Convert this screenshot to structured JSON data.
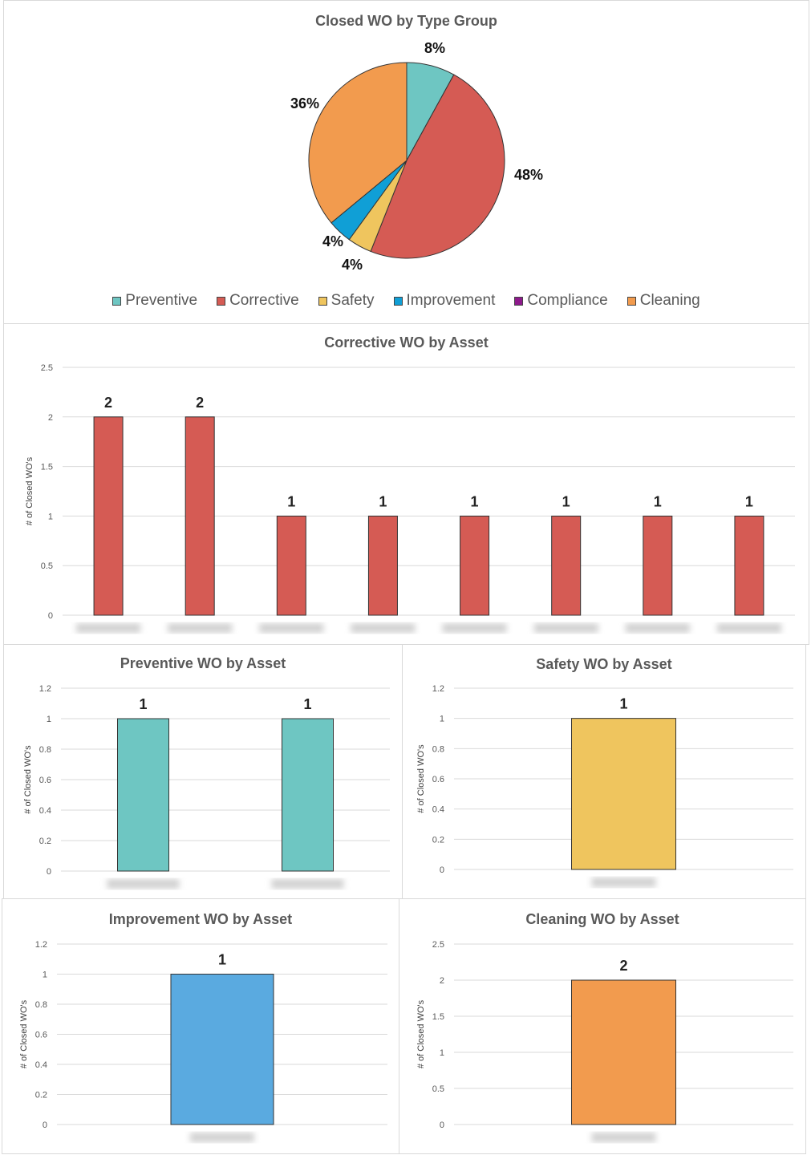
{
  "chart_data": [
    {
      "type": "pie",
      "title": "Closed WO by Type Group",
      "legend_position": "bottom",
      "slices": [
        {
          "name": "Preventive",
          "value": 8,
          "label": "8%",
          "color": "#6EC6C2"
        },
        {
          "name": "Corrective",
          "value": 48,
          "label": "48%",
          "color": "#D55B54"
        },
        {
          "name": "Safety",
          "value": 4,
          "label": "4%",
          "color": "#EFC55E"
        },
        {
          "name": "Improvement",
          "value": 4,
          "label": "4%",
          "color": "#109FD6"
        },
        {
          "name": "Compliance",
          "value": 0,
          "label": "",
          "color": "#8E1A8C"
        },
        {
          "name": "Cleaning",
          "value": 36,
          "label": "36%",
          "color": "#F29B4E"
        }
      ]
    },
    {
      "type": "bar",
      "title": "Corrective WO by Asset",
      "ylabel": "# of Closed WO's",
      "ylim": [
        0,
        2.5
      ],
      "yticks": [
        "0",
        "0.5",
        "1",
        "1.5",
        "2",
        "2.5"
      ],
      "categories_blurred": true,
      "values": [
        2,
        2,
        1,
        1,
        1,
        1,
        1,
        1
      ],
      "color": "#D55B54",
      "grid": true
    },
    {
      "type": "bar",
      "title": "Preventive WO by Asset",
      "ylabel": "# of Closed WO's",
      "ylim": [
        0,
        1.2
      ],
      "yticks": [
        "0",
        "0.2",
        "0.4",
        "0.6",
        "0.8",
        "1",
        "1.2"
      ],
      "categories_blurred": true,
      "values": [
        1,
        1
      ],
      "color": "#6EC6C2",
      "grid": true
    },
    {
      "type": "bar",
      "title": "Safety WO by Asset",
      "ylabel": "# of Closed WO's",
      "ylim": [
        0,
        1.2
      ],
      "yticks": [
        "0",
        "0.2",
        "0.4",
        "0.6",
        "0.8",
        "1",
        "1.2"
      ],
      "categories_blurred": true,
      "values": [
        1
      ],
      "color": "#EFC55E",
      "grid": true
    },
    {
      "type": "bar",
      "title": "Improvement WO by Asset",
      "ylabel": "# of Closed WO's",
      "ylim": [
        0,
        1.2
      ],
      "yticks": [
        "0",
        "0.2",
        "0.4",
        "0.6",
        "0.8",
        "1",
        "1.2"
      ],
      "categories_blurred": true,
      "values": [
        1
      ],
      "color": "#5AAAE0",
      "grid": true
    },
    {
      "type": "bar",
      "title": "Cleaning WO by Asset",
      "ylabel": "# of Closed WO's",
      "ylim": [
        0,
        2.5
      ],
      "yticks": [
        "0",
        "0.5",
        "1",
        "1.5",
        "2",
        "2.5"
      ],
      "categories_blurred": true,
      "values": [
        2
      ],
      "color": "#F29B4E",
      "grid": true
    }
  ]
}
